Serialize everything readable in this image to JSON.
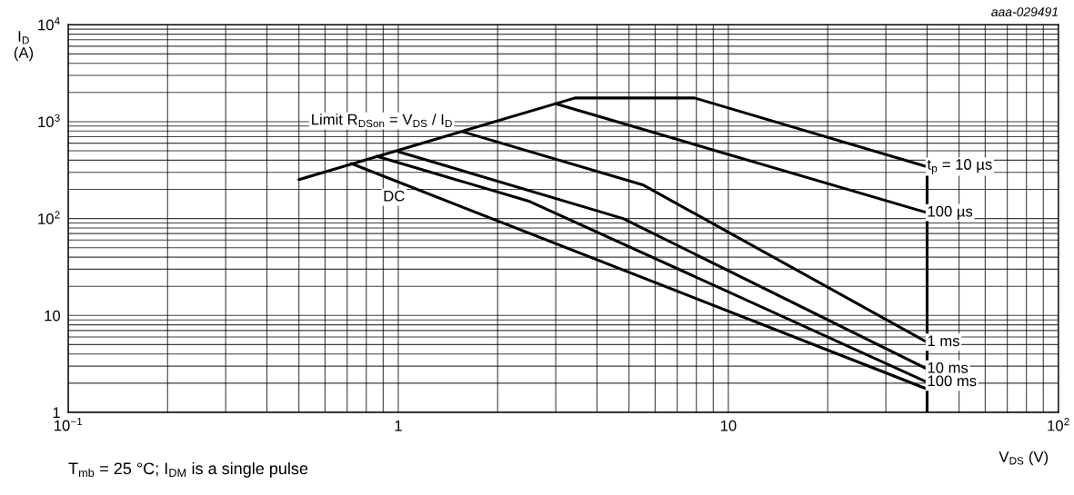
{
  "chart_data": {
    "type": "line",
    "xlabel": "V$_{DS}$ (V)",
    "ylabel": "I$_{D}$\n(A)",
    "log": "xy",
    "grid": true,
    "marker": "none",
    "line_style": "solid",
    "xlim": [
      0.1,
      100
    ],
    "ylim": [
      1,
      10000
    ],
    "xticks": [
      {
        "value": 0.1,
        "label": "10$^{−1}$"
      },
      1,
      10,
      {
        "value": 100,
        "label": "10$^{2}$"
      }
    ],
    "yticks": [
      1,
      10,
      {
        "value": 100,
        "label": "10$^{2}$"
      },
      {
        "value": 1000,
        "label": "10$^{3}$"
      },
      {
        "value": 10000,
        "label": "10$^{4}$"
      }
    ],
    "series": [
      {
        "name": "t$_{p}$ = 10 µs",
        "color": "#000000",
        "x": [
          0.5,
          3.43,
          7.9,
          40
        ],
        "values": [
          252,
          1754,
          1754,
          343
        ]
      },
      {
        "color": "#000000",
        "x": [
          40,
          40
        ],
        "values": [
          343,
          1
        ]
      },
      {
        "name": "100 µs",
        "color": "#000000",
        "x": [
          3.0,
          40
        ],
        "values": [
          1530,
          115
        ]
      },
      {
        "name": "1 ms",
        "color": "#000000",
        "x": [
          1.57,
          5.5,
          40
        ],
        "values": [
          785,
          223,
          5.3
        ]
      },
      {
        "name": "10 ms",
        "color": "#000000",
        "x": [
          1.0,
          4.8,
          40
        ],
        "values": [
          490,
          100,
          2.8
        ]
      },
      {
        "name": "100 ms",
        "color": "#000000",
        "x": [
          0.86,
          2.5,
          40
        ],
        "values": [
          440,
          150,
          2.05
        ]
      },
      {
        "color": "#000000",
        "x": [
          0.72,
          40
        ],
        "values": [
          370,
          1.74
        ]
      }
    ],
    "annotations": [
      "aaa-029491",
      "T$_{mb}$ = 25 °C; I$_{DM}$ is a single pulse",
      "Limit R$_{DSon}$ = V$_{DS}$ / I$_{D}$",
      "DC"
    ]
  }
}
